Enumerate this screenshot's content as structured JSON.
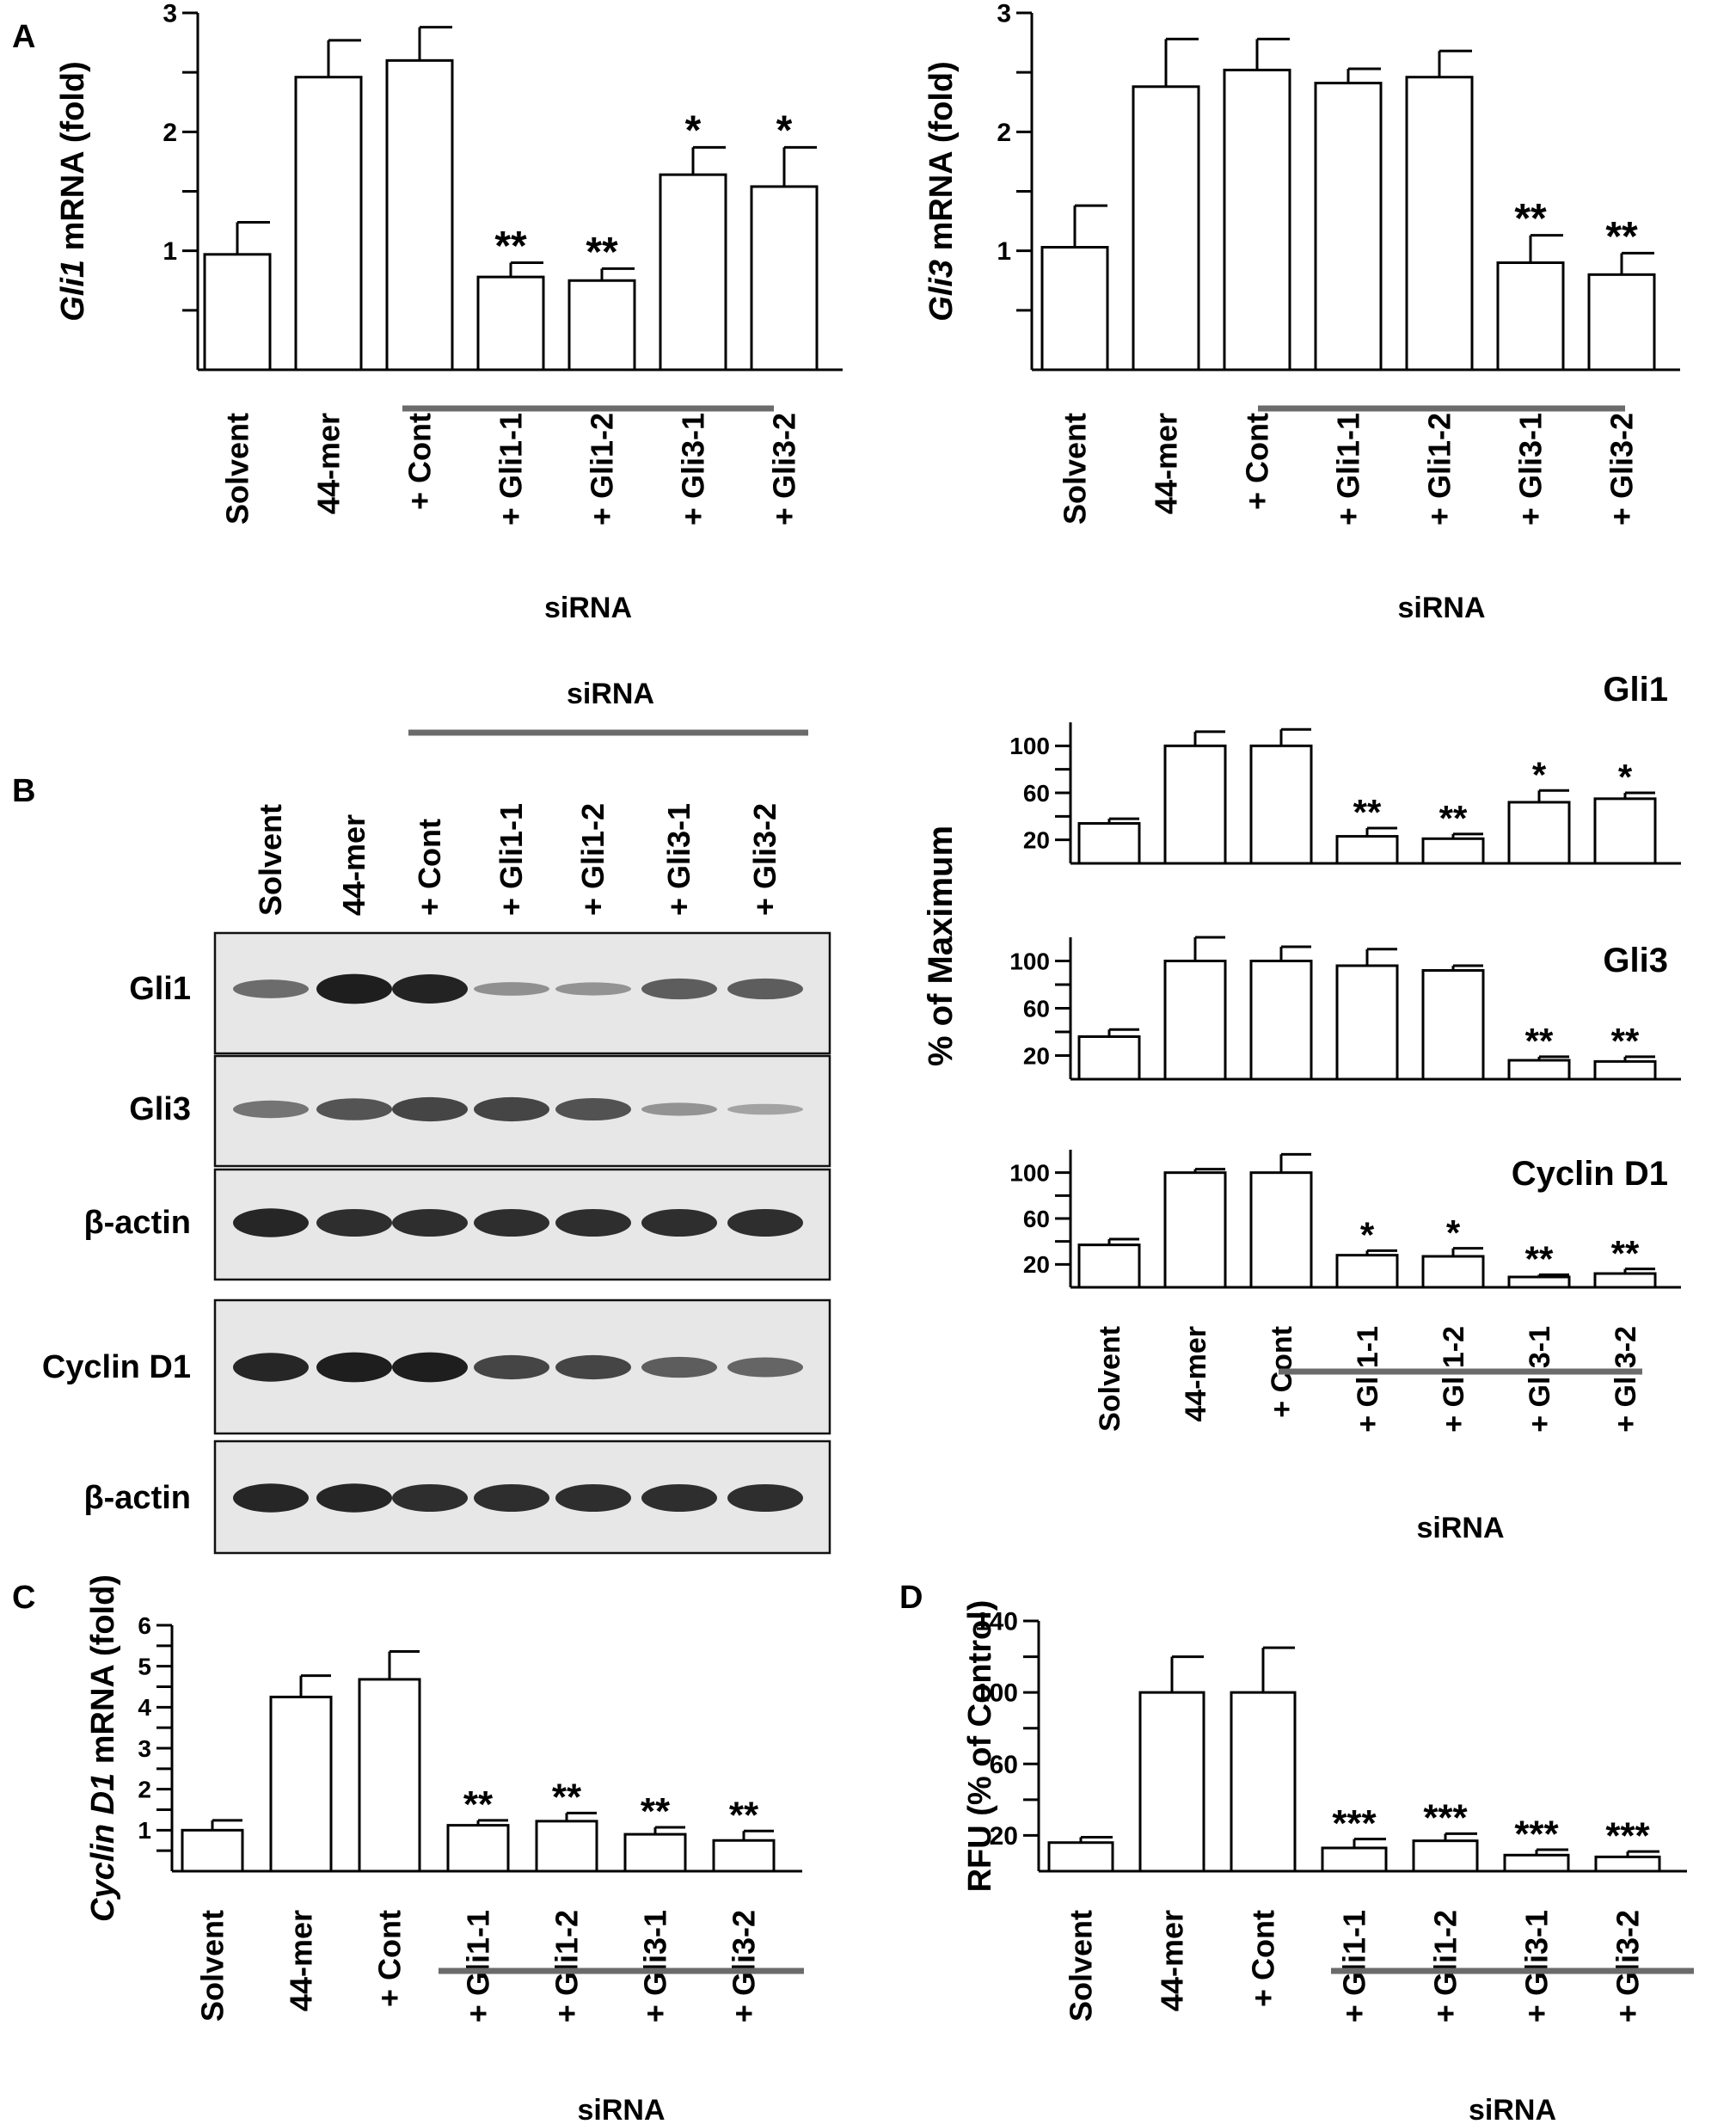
{
  "panels": {
    "A": "A",
    "B": "B",
    "C": "C",
    "D": "D"
  },
  "group_label": "siRNA",
  "chart_data": [
    {
      "id": "gli1",
      "type": "bar",
      "categories": [
        "Solvent",
        "44-mer",
        "+ Cont",
        "+ Gli1-1",
        "+ Gli1-2",
        "+ Gli3-1",
        "+ Gli3-2"
      ],
      "values": [
        0.97,
        2.46,
        2.6,
        0.78,
        0.75,
        1.64,
        1.54
      ],
      "errors": [
        0.27,
        0.31,
        0.28,
        0.12,
        0.1,
        0.23,
        0.33
      ],
      "significance": [
        "",
        "",
        "",
        "**",
        "**",
        "*",
        "*"
      ],
      "ylabel_italic": "Gli1",
      "ylabel_rest": " mRNA (fold)",
      "ylim": [
        0,
        3
      ],
      "yticks": [
        1,
        2,
        3
      ],
      "grid": false,
      "group_label": "siRNA",
      "group_span": [
        "+ Cont",
        "+ Gli3-2"
      ]
    },
    {
      "id": "gli3",
      "type": "bar",
      "categories": [
        "Solvent",
        "44-mer",
        "+ Cont",
        "+ Gli1-1",
        "+ Gli1-2",
        "+ Gli3-1",
        "+ Gli3-2"
      ],
      "values": [
        1.03,
        2.38,
        2.52,
        2.41,
        2.46,
        0.9,
        0.8
      ],
      "errors": [
        0.35,
        0.4,
        0.26,
        0.12,
        0.22,
        0.23,
        0.18
      ],
      "significance": [
        "",
        "",
        "",
        "",
        "",
        "**",
        "**"
      ],
      "ylabel_italic": "Gli3",
      "ylabel_rest": " mRNA (fold)",
      "ylim": [
        0,
        3
      ],
      "yticks": [
        1,
        2,
        3
      ],
      "grid": false,
      "group_label": "siRNA",
      "group_span": [
        "+ Cont",
        "+ Gli3-2"
      ]
    },
    {
      "id": "b_gli1",
      "type": "bar",
      "title": "Gli1",
      "categories": [
        "Solvent",
        "44-mer",
        "+ Cont",
        "+ Gli1-1",
        "+ Gli1-2",
        "+ Gli3-1",
        "+ Gli3-2"
      ],
      "values": [
        34,
        100,
        100,
        23,
        21,
        52,
        55
      ],
      "errors": [
        4,
        12,
        14,
        7,
        4,
        10,
        5
      ],
      "significance": [
        "",
        "",
        "",
        "**",
        "**",
        "*",
        "*"
      ],
      "ylim": [
        0,
        120
      ],
      "yticks": [
        20,
        60,
        100
      ],
      "grid": false
    },
    {
      "id": "b_gli3",
      "type": "bar",
      "title": "Gli3",
      "categories": [
        "Solvent",
        "44-mer",
        "+ Cont",
        "+ Gli1-1",
        "+ Gli1-2",
        "+ Gli3-1",
        "+ Gli3-2"
      ],
      "values": [
        36,
        100,
        100,
        96,
        92,
        16,
        15
      ],
      "errors": [
        6,
        20,
        12,
        14,
        4,
        3,
        4
      ],
      "significance": [
        "",
        "",
        "",
        "",
        "",
        "**",
        "**"
      ],
      "ylim": [
        0,
        120
      ],
      "yticks": [
        20,
        60,
        100
      ],
      "grid": false
    },
    {
      "id": "b_cyclin",
      "type": "bar",
      "title": "Cyclin D1",
      "categories": [
        "Solvent",
        "44-mer",
        "+ Cont",
        "+ Gli1-1",
        "+ Gli1-2",
        "+ Gli3-1",
        "+ Gli3-2"
      ],
      "values": [
        37,
        100,
        100,
        28,
        27,
        9,
        12
      ],
      "errors": [
        5,
        3,
        16,
        4,
        7,
        2,
        4
      ],
      "significance": [
        "",
        "",
        "",
        "*",
        "*",
        "**",
        "**"
      ],
      "ylim": [
        0,
        120
      ],
      "yticks": [
        20,
        60,
        100
      ],
      "grid": false,
      "ylabel_shared": "% of Maximum",
      "group_label": "siRNA",
      "group_span": [
        "+ Cont",
        "+ Gli3-2"
      ]
    },
    {
      "id": "cyclin_mrna",
      "type": "bar",
      "categories": [
        "Solvent",
        "44-mer",
        "+ Cont",
        "+ Gli1-1",
        "+ Gli1-2",
        "+ Gli3-1",
        "+ Gli3-2"
      ],
      "values": [
        1.0,
        4.25,
        4.68,
        1.12,
        1.22,
        0.9,
        0.75
      ],
      "errors": [
        0.24,
        0.52,
        0.68,
        0.12,
        0.2,
        0.17,
        0.23
      ],
      "significance": [
        "",
        "",
        "",
        "**",
        "**",
        "**",
        "**"
      ],
      "ylabel_italic": "Cyclin D1",
      "ylabel_rest": "  mRNA (fold)",
      "ylim": [
        0,
        6
      ],
      "yticks": [
        1,
        2,
        3,
        4,
        5,
        6
      ],
      "grid": false,
      "group_label": "siRNA",
      "group_span": [
        "+ Cont",
        "+ Gli3-2"
      ]
    },
    {
      "id": "rfu",
      "type": "bar",
      "categories": [
        "Solvent",
        "44-mer",
        "+ Cont",
        "+ Gli1-1",
        "+ Gli1-2",
        "+ Gli3-1",
        "+ Gli3-2"
      ],
      "values": [
        16,
        100,
        100,
        13,
        17,
        9,
        8
      ],
      "errors": [
        3,
        20,
        25,
        5,
        4,
        3,
        3
      ],
      "significance": [
        "",
        "",
        "",
        "***",
        "***",
        "***",
        "***"
      ],
      "ylabel": "RFU (% of Control)",
      "ylim": [
        0,
        140
      ],
      "yticks": [
        20,
        60,
        100,
        140
      ],
      "grid": false,
      "group_label": "siRNA",
      "group_span": [
        "+ Cont",
        "+ Gli3-2"
      ]
    }
  ],
  "western_blot": {
    "lanes": [
      "Solvent",
      "44-mer",
      "+ Cont",
      "+ Gli1-1",
      "+ Gli1-2",
      "+ Gli3-1",
      "+ Gli3-2"
    ],
    "group_label": "siRNA",
    "rows": [
      {
        "label": "Gli1",
        "intensity": [
          0.45,
          0.95,
          0.92,
          0.22,
          0.2,
          0.55,
          0.55
        ]
      },
      {
        "label": "Gli3",
        "intensity": [
          0.4,
          0.6,
          0.7,
          0.7,
          0.62,
          0.2,
          0.1
        ]
      },
      {
        "label": "β-actin",
        "intensity": [
          0.9,
          0.85,
          0.85,
          0.85,
          0.85,
          0.85,
          0.85
        ]
      },
      {
        "label": "Cyclin D1",
        "intensity": [
          0.9,
          0.95,
          0.95,
          0.7,
          0.7,
          0.55,
          0.5
        ]
      },
      {
        "label": "β-actin",
        "intensity": [
          0.9,
          0.9,
          0.85,
          0.85,
          0.85,
          0.85,
          0.85
        ]
      }
    ]
  }
}
